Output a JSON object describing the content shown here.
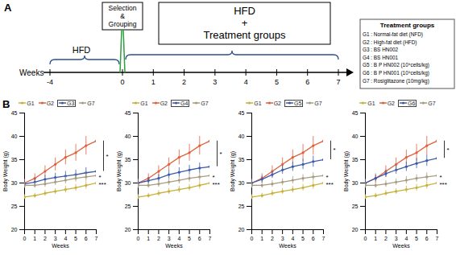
{
  "panel_a": {
    "label": "A",
    "axis_label": "Weeks",
    "ticks": [
      -4,
      0,
      1,
      2,
      3,
      4,
      5,
      6,
      7
    ],
    "phases": [
      {
        "lines": [
          "HFD"
        ],
        "from": -4,
        "to": 0
      },
      {
        "lines": [
          "Selection",
          "&",
          "Grouping"
        ],
        "from": 0,
        "to": 0
      },
      {
        "lines": [
          "HFD",
          "+",
          "Treatment groups"
        ],
        "from": 0,
        "to": 7
      }
    ],
    "legend": {
      "title": "Treatment groups",
      "items": [
        "G1 : Normal-fat diet (NFD)",
        "G2 : High-fat diet (HFD)",
        "G3 : BS HN002",
        "G4 : BS HN001",
        "G5 : B P HN002 (10⁹cells/kg)",
        "G6 : B P HN001 (10⁹cells/kg)",
        "G7 : Rosiglitazone (10mg/kg)"
      ]
    }
  },
  "panel_b": {
    "label": "B"
  },
  "chart_data": [
    {
      "type": "line",
      "x_label": "Weeks",
      "y_label": "Body Weight (g)",
      "x": [
        0,
        1,
        2,
        3,
        4,
        5,
        6,
        7
      ],
      "xlim": [
        0,
        7
      ],
      "xticks": [
        0,
        1,
        2,
        3,
        4,
        5,
        6,
        7
      ],
      "ylim": [
        20,
        45
      ],
      "yticks": [
        20,
        25,
        30,
        35,
        40,
        45
      ],
      "grid": false,
      "marker": "circle",
      "series": [
        {
          "name": "G1",
          "color": "#c9b03a",
          "values": [
            27,
            27.3,
            27.8,
            28.2,
            28.6,
            29,
            29.5,
            30
          ],
          "errors": [
            0.5,
            0.5,
            0.6,
            0.6,
            0.7,
            0.7,
            0.8,
            0.8
          ]
        },
        {
          "name": "G2",
          "color": "#e0603c",
          "values": [
            30,
            31,
            32.5,
            34,
            35.5,
            36.5,
            38,
            39
          ],
          "errors": [
            0.8,
            1,
            1.2,
            1.4,
            1.6,
            1.8,
            2,
            2.2
          ]
        },
        {
          "name": "G3",
          "color": "#3b5ba9",
          "values": [
            29.8,
            30.2,
            30.8,
            31.2,
            31.5,
            31.8,
            32.2,
            32.5
          ],
          "errors": [
            0.6,
            0.7,
            0.8,
            0.9,
            1,
            1,
            1.1,
            1.2
          ]
        },
        {
          "name": "G7",
          "color": "#a89c80",
          "values": [
            29.5,
            29.5,
            29.8,
            30.2,
            30.6,
            31,
            31.3,
            31.6
          ],
          "errors": [
            0.6,
            0.6,
            0.7,
            0.7,
            0.8,
            0.8,
            0.9,
            0.9
          ]
        }
      ],
      "annotations": [
        {
          "text": "*",
          "series": [
            "G2",
            "G3"
          ]
        },
        {
          "text": "*",
          "series": [
            "G7"
          ]
        },
        {
          "text": "***",
          "series": [
            "G1"
          ]
        }
      ]
    },
    {
      "type": "line",
      "x_label": "Weeks",
      "y_label": "Body Weight (g)",
      "x": [
        0,
        1,
        2,
        3,
        4,
        5,
        6,
        7
      ],
      "xlim": [
        0,
        7
      ],
      "xticks": [
        0,
        1,
        2,
        3,
        4,
        5,
        6,
        7
      ],
      "ylim": [
        20,
        45
      ],
      "yticks": [
        20,
        25,
        30,
        35,
        40,
        45
      ],
      "grid": false,
      "marker": "circle",
      "series": [
        {
          "name": "G1",
          "color": "#c9b03a",
          "values": [
            27,
            27.3,
            27.8,
            28.2,
            28.6,
            29,
            29.5,
            30
          ],
          "errors": [
            0.5,
            0.5,
            0.6,
            0.6,
            0.7,
            0.7,
            0.8,
            0.8
          ]
        },
        {
          "name": "G2",
          "color": "#e0603c",
          "values": [
            30,
            31,
            32.5,
            34,
            35.5,
            36.5,
            38,
            39
          ],
          "errors": [
            0.8,
            1,
            1.2,
            1.4,
            1.6,
            1.8,
            2,
            2.2
          ]
        },
        {
          "name": "G4",
          "color": "#3b5ba9",
          "values": [
            30,
            30.5,
            31,
            31.8,
            32.3,
            32.8,
            33.2,
            33.5
          ],
          "errors": [
            0.6,
            0.7,
            0.8,
            0.9,
            1,
            1,
            1.1,
            1.2
          ]
        },
        {
          "name": "G7",
          "color": "#a89c80",
          "values": [
            29.5,
            29.5,
            29.8,
            30.2,
            30.6,
            31,
            31.3,
            31.6
          ],
          "errors": [
            0.6,
            0.6,
            0.7,
            0.7,
            0.8,
            0.8,
            0.9,
            0.9
          ]
        }
      ],
      "annotations": [
        {
          "text": "*",
          "series": [
            "G2",
            "G4"
          ]
        },
        {
          "text": "*",
          "series": [
            "G7"
          ]
        },
        {
          "text": "***",
          "series": [
            "G1"
          ]
        }
      ]
    },
    {
      "type": "line",
      "x_label": "Weeks",
      "y_label": "Body Weight (g)",
      "x": [
        0,
        1,
        2,
        3,
        4,
        5,
        6,
        7
      ],
      "xlim": [
        0,
        7
      ],
      "xticks": [
        0,
        1,
        2,
        3,
        4,
        5,
        6,
        7
      ],
      "ylim": [
        20,
        45
      ],
      "yticks": [
        20,
        25,
        30,
        35,
        40,
        45
      ],
      "grid": false,
      "marker": "circle",
      "series": [
        {
          "name": "G1",
          "color": "#c9b03a",
          "values": [
            27,
            27.3,
            27.8,
            28.2,
            28.6,
            29,
            29.5,
            30
          ],
          "errors": [
            0.5,
            0.5,
            0.6,
            0.6,
            0.7,
            0.7,
            0.8,
            0.8
          ]
        },
        {
          "name": "G2",
          "color": "#e0603c",
          "values": [
            30,
            31,
            32.5,
            34,
            35.5,
            36.5,
            38,
            39
          ],
          "errors": [
            0.8,
            1,
            1.2,
            1.4,
            1.6,
            1.8,
            2,
            2.2
          ]
        },
        {
          "name": "G5",
          "color": "#3b5ba9",
          "values": [
            30,
            30.8,
            31.8,
            32.8,
            33.5,
            34,
            34.6,
            35
          ],
          "errors": [
            0.6,
            0.7,
            0.8,
            0.9,
            1,
            1.1,
            1.2,
            1.3
          ]
        },
        {
          "name": "G7",
          "color": "#a89c80",
          "values": [
            29.5,
            29.5,
            29.8,
            30.2,
            30.6,
            31,
            31.3,
            31.6
          ],
          "errors": [
            0.6,
            0.6,
            0.7,
            0.7,
            0.8,
            0.8,
            0.9,
            0.9
          ]
        }
      ],
      "annotations": [
        {
          "text": "*",
          "series": [
            "G2",
            "G5"
          ]
        },
        {
          "text": "*",
          "series": [
            "G7"
          ]
        },
        {
          "text": "***",
          "series": [
            "G1"
          ]
        }
      ]
    },
    {
      "type": "line",
      "x_label": "Weeks",
      "y_label": "Body Weight (g)",
      "x": [
        0,
        1,
        2,
        3,
        4,
        5,
        6,
        7
      ],
      "xlim": [
        0,
        7
      ],
      "xticks": [
        0,
        1,
        2,
        3,
        4,
        5,
        6,
        7
      ],
      "ylim": [
        20,
        45
      ],
      "yticks": [
        20,
        25,
        30,
        35,
        40,
        45
      ],
      "grid": false,
      "marker": "circle",
      "series": [
        {
          "name": "G1",
          "color": "#c9b03a",
          "values": [
            27,
            27.3,
            27.8,
            28.2,
            28.6,
            29,
            29.5,
            30
          ],
          "errors": [
            0.5,
            0.5,
            0.6,
            0.6,
            0.7,
            0.7,
            0.8,
            0.8
          ]
        },
        {
          "name": "G2",
          "color": "#e0603c",
          "values": [
            30,
            31,
            32.5,
            34,
            35.5,
            36.5,
            38,
            39
          ],
          "errors": [
            0.8,
            1,
            1.2,
            1.4,
            1.6,
            1.8,
            2,
            2.2
          ]
        },
        {
          "name": "G6",
          "color": "#3b5ba9",
          "values": [
            30,
            31,
            32,
            32.8,
            33.5,
            34.2,
            34.8,
            35.3
          ],
          "errors": [
            0.6,
            0.7,
            0.8,
            0.9,
            1,
            1.1,
            1.2,
            1.3
          ]
        },
        {
          "name": "G7",
          "color": "#a89c80",
          "values": [
            29.5,
            29.5,
            29.8,
            30.2,
            30.6,
            31,
            31.3,
            31.6
          ],
          "errors": [
            0.6,
            0.6,
            0.7,
            0.7,
            0.8,
            0.8,
            0.9,
            0.9
          ]
        }
      ],
      "annotations": [
        {
          "text": "*",
          "series": [
            "G2",
            "G6"
          ]
        },
        {
          "text": "*",
          "series": [
            "G7"
          ]
        },
        {
          "text": "***",
          "series": [
            "G1"
          ]
        }
      ]
    }
  ]
}
